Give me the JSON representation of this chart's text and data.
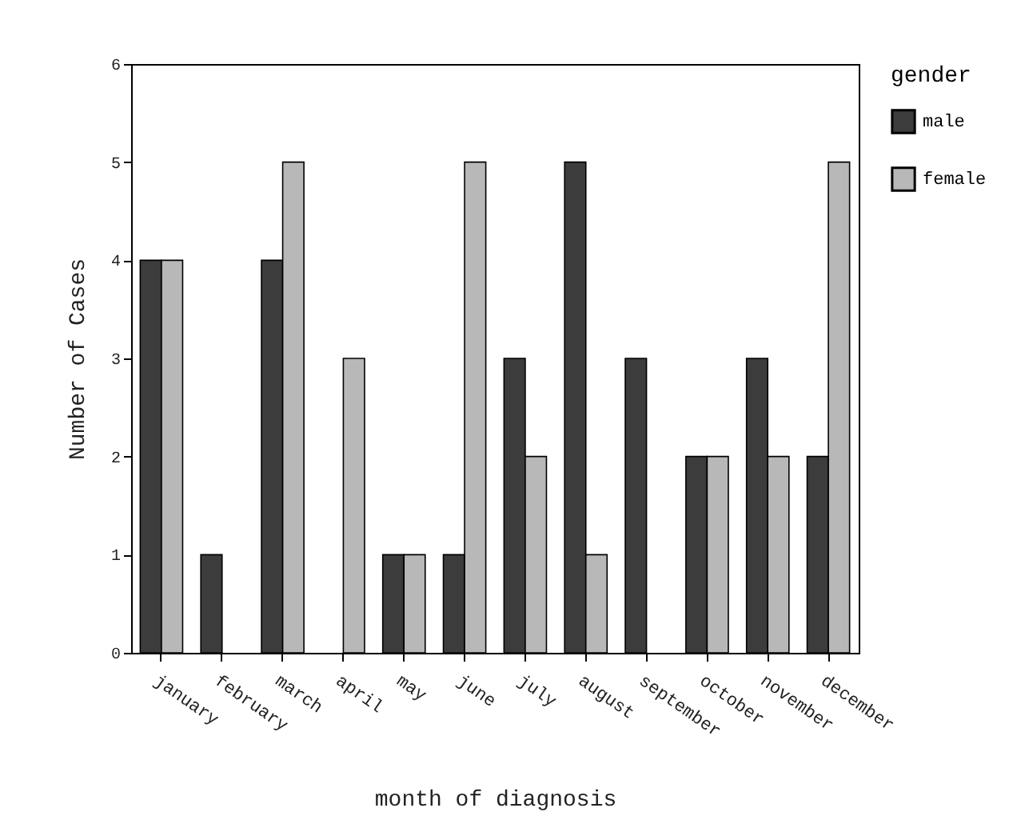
{
  "chart_data": {
    "type": "bar",
    "xlabel": "month of diagnosis",
    "ylabel": "Number of Cases",
    "legend_title": "gender",
    "legend": "right",
    "categories": [
      "january",
      "february",
      "march",
      "april",
      "may",
      "june",
      "july",
      "august",
      "september",
      "october",
      "november",
      "december"
    ],
    "series": [
      {
        "name": "male",
        "color": "#3c3c3c",
        "values": [
          4,
          1,
          4,
          null,
          1,
          1,
          3,
          5,
          3,
          2,
          3,
          2
        ]
      },
      {
        "name": "female",
        "color": "#b8b8b8",
        "values": [
          4,
          null,
          5,
          3,
          1,
          5,
          2,
          1,
          null,
          2,
          2,
          5
        ]
      }
    ],
    "ylim": [
      0,
      6
    ],
    "yticks": [
      0,
      1,
      2,
      3,
      4,
      5,
      6
    ]
  }
}
